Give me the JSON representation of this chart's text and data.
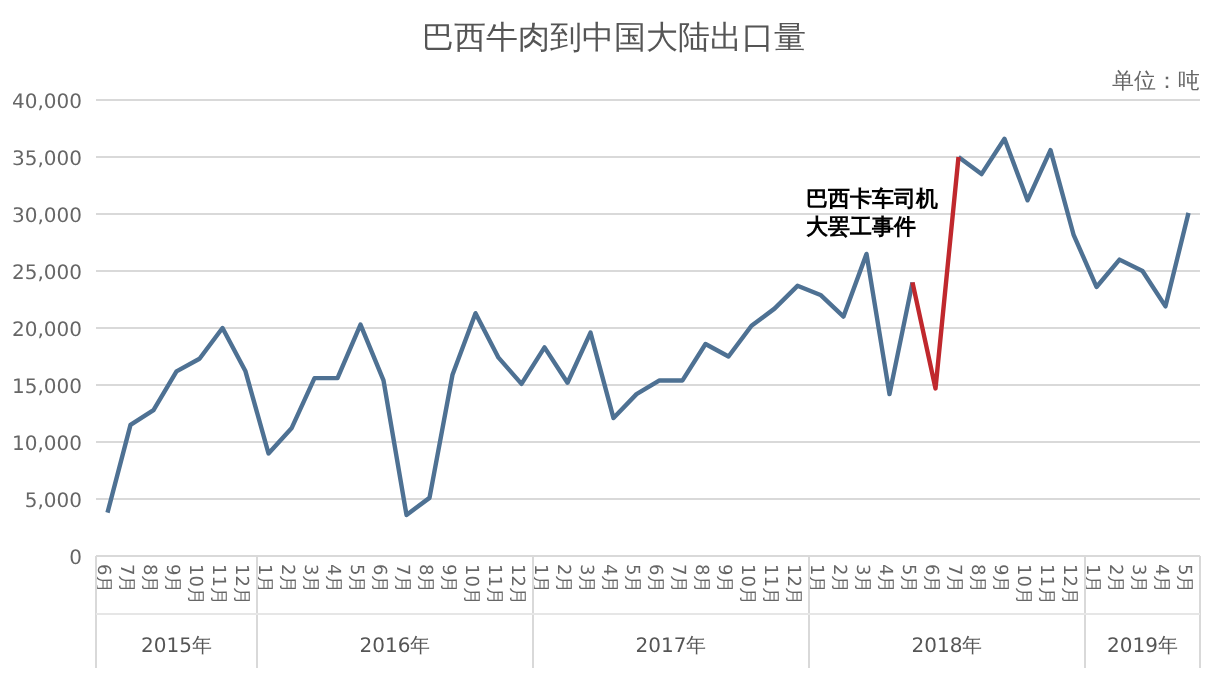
{
  "chart_data": {
    "type": "line",
    "title": "巴西牛肉到中国大陆出口量",
    "ylabel": "单位：吨",
    "categories": [
      "6月",
      "7月",
      "8月",
      "9月",
      "10月",
      "11月",
      "12月",
      "1月",
      "2月",
      "3月",
      "4月",
      "5月",
      "6月",
      "7月",
      "8月",
      "9月",
      "10月",
      "11月",
      "12月",
      "1月",
      "2月",
      "3月",
      "4月",
      "5月",
      "6月",
      "7月",
      "8月",
      "9月",
      "10月",
      "11月",
      "12月",
      "1月",
      "2月",
      "3月",
      "4月",
      "5月",
      "6月",
      "7月",
      "8月",
      "9月",
      "10月",
      "11月",
      "12月",
      "1月",
      "2月",
      "3月",
      "4月",
      "5月"
    ],
    "series": [
      {
        "color": "#4e7193",
        "values": [
          3800,
          11500,
          12800,
          16200,
          17300,
          20000,
          16200,
          9000,
          11200,
          15600,
          15600,
          20300,
          15400,
          3600,
          5100,
          15900,
          21300,
          17400,
          15100,
          18300,
          15200,
          19600,
          12100,
          14200,
          15400,
          15400,
          18600,
          17500,
          20200,
          21700,
          23700,
          22900,
          21000,
          26500,
          14200,
          24000,
          null,
          35000,
          33500,
          36600,
          31200,
          35600,
          28200,
          23600,
          26000,
          25000,
          21900,
          30100
        ]
      },
      {
        "color": "#c0282d",
        "values": [
          null,
          null,
          null,
          null,
          null,
          null,
          null,
          null,
          null,
          null,
          null,
          null,
          null,
          null,
          null,
          null,
          null,
          null,
          null,
          null,
          null,
          null,
          null,
          null,
          null,
          null,
          null,
          null,
          null,
          null,
          null,
          null,
          null,
          null,
          null,
          24000,
          14700,
          35000,
          null,
          null,
          null,
          null,
          null,
          null,
          null,
          null,
          null,
          null
        ]
      }
    ],
    "ylim": [
      0,
      40000
    ],
    "yticks": [
      {
        "value": 0,
        "label": "0"
      },
      {
        "value": 5000,
        "label": "5,000"
      },
      {
        "value": 10000,
        "label": "10,000"
      },
      {
        "value": 15000,
        "label": "15,000"
      },
      {
        "value": 20000,
        "label": "20,000"
      },
      {
        "value": 25000,
        "label": "25,000"
      },
      {
        "value": 30000,
        "label": "30,000"
      },
      {
        "value": 35000,
        "label": "35,000"
      },
      {
        "value": 40000,
        "label": "40,000"
      }
    ],
    "grid": "y",
    "annotations": [
      "2015年",
      "2016年",
      "2017年",
      "2018年",
      "2019年",
      "巴西卡车司机大罢工事件"
    ]
  }
}
